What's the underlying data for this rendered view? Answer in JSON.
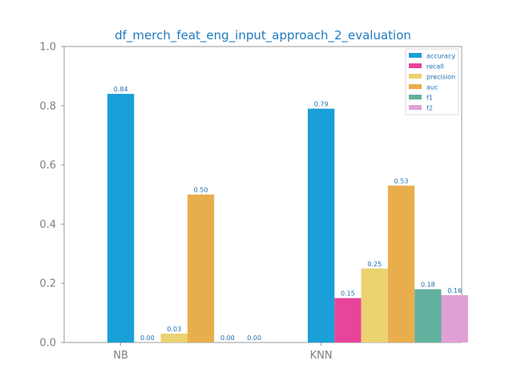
{
  "chart_data": {
    "type": "bar",
    "title": "df_merch_feat_eng_input_approach_2_evaluation",
    "xlabel": "",
    "ylabel": "",
    "categories": [
      "NB",
      "KNN"
    ],
    "ylim": [
      0,
      1
    ],
    "yticks": [
      "0.0",
      "0.2",
      "0.4",
      "0.6",
      "0.8",
      "1.0"
    ],
    "grid": false,
    "legend_position": "top-right",
    "series": [
      {
        "name": "accuracy",
        "color": "#1a9fd8",
        "values": [
          0.84,
          0.79
        ],
        "labels": [
          "0.84",
          "0.79"
        ]
      },
      {
        "name": "recall",
        "color": "#e8449a",
        "values": [
          0.0,
          0.15
        ],
        "labels": [
          "0.00",
          "0.15"
        ]
      },
      {
        "name": "precision",
        "color": "#ebd270",
        "values": [
          0.03,
          0.25
        ],
        "labels": [
          "0.03",
          "0.25"
        ]
      },
      {
        "name": "auc",
        "color": "#e8ae4d",
        "values": [
          0.5,
          0.53
        ],
        "labels": [
          "0.50",
          "0.53"
        ]
      },
      {
        "name": "f1",
        "color": "#62b19f",
        "values": [
          0.0,
          0.18
        ],
        "labels": [
          "0.00",
          "0.18"
        ]
      },
      {
        "name": "f2",
        "color": "#e0a0d5",
        "values": [
          0.0,
          0.16
        ],
        "labels": [
          "0.00",
          "0.16"
        ]
      }
    ]
  }
}
